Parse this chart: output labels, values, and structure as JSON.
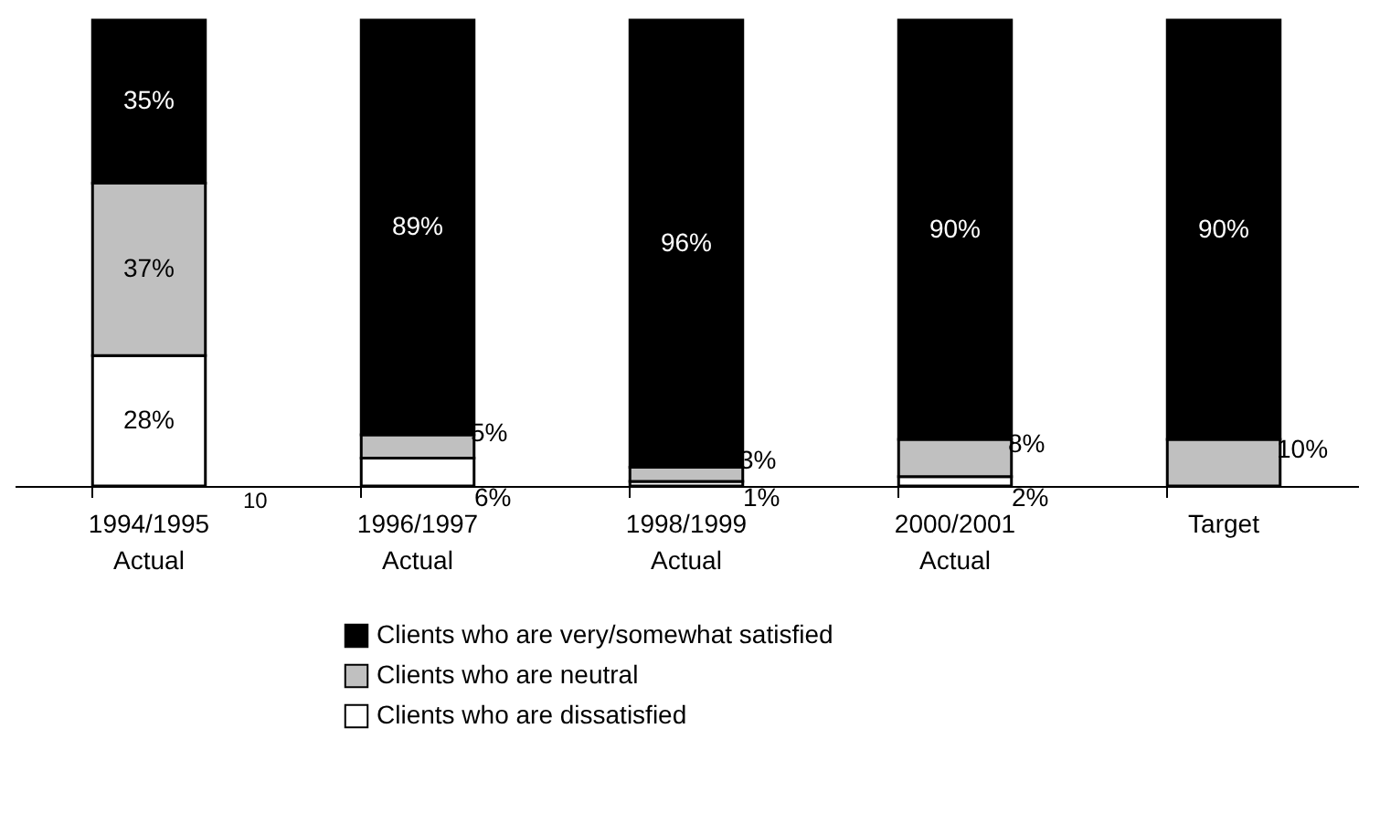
{
  "chart_data": {
    "type": "bar",
    "stacked": true,
    "categories": [
      "1994/1995\nActual",
      "1996/1997\nActual",
      "1998/1999\nActual",
      "2000/2001\nActual",
      "Target"
    ],
    "series": [
      {
        "name": "Clients who are dissatisfied",
        "color": "#ffffff",
        "values": [
          28,
          6,
          1,
          2,
          null
        ],
        "value_labels": [
          "28%",
          "6%",
          "1%",
          "2%",
          null
        ]
      },
      {
        "name": "Clients who are neutral",
        "color": "#c0c0c0",
        "values": [
          37,
          5,
          3,
          8,
          10
        ],
        "value_labels": [
          "37%",
          "5%",
          "3%",
          "8%",
          "10%"
        ]
      },
      {
        "name": "Clients who are very/somewhat satisfied",
        "color": "#000000",
        "values": [
          35,
          89,
          96,
          90,
          90
        ],
        "value_labels": [
          "35%",
          "89%",
          "96%",
          "90%",
          "90%"
        ]
      }
    ],
    "legend": "bottom",
    "grid": false,
    "annotations": [
      "10"
    ]
  }
}
